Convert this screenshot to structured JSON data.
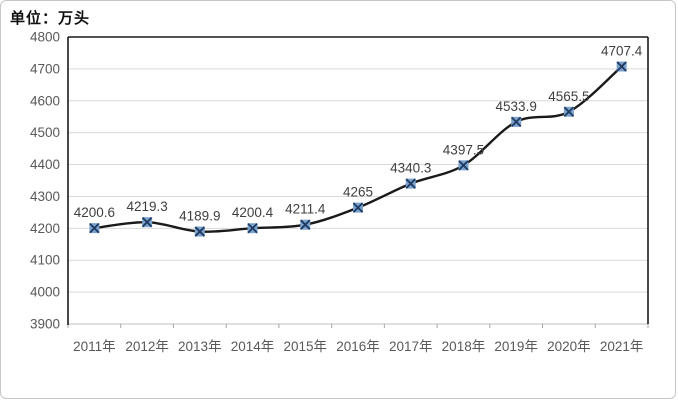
{
  "chart_data": {
    "type": "line",
    "unit_label": "单位：万头",
    "categories": [
      "2011年",
      "2012年",
      "2013年",
      "2014年",
      "2015年",
      "2016年",
      "2017年",
      "2018年",
      "2019年",
      "2020年",
      "2021年"
    ],
    "series": [
      {
        "values": [
          4200.6,
          4219.3,
          4189.9,
          4200.4,
          4211.4,
          4265,
          4340.3,
          4397.5,
          4533.9,
          4565.5,
          4707.4
        ],
        "point_labels": [
          "4200.6",
          "4219.3",
          "4189.9",
          "4200.4",
          "4211.4",
          "4265",
          "4340.3",
          "4397.5",
          "4533.9",
          "4565.5",
          "4707.4"
        ]
      }
    ],
    "ylim": [
      3900,
      4800
    ],
    "y_tick_step": 100,
    "y_ticks": [
      "3900",
      "4000",
      "4100",
      "4200",
      "4300",
      "4400",
      "4500",
      "4600",
      "4700",
      "4800"
    ],
    "grid": "horizontal",
    "legend": "none",
    "line_smooth": true,
    "marker": "x-in-square",
    "colors": {
      "line": "#1a1a1a",
      "marker_fill": "#7ba2cd",
      "marker_stroke": "#1f3a60",
      "data_label": "#3f3f3f",
      "axis_text": "#595959",
      "gridline": "#d9d9d9",
      "plot_border": "#1a1a1a",
      "x_axis_line": "#bfbfbf",
      "tick_mark": "#a6a6a6",
      "chart_border": "#c6c6c6"
    }
  }
}
